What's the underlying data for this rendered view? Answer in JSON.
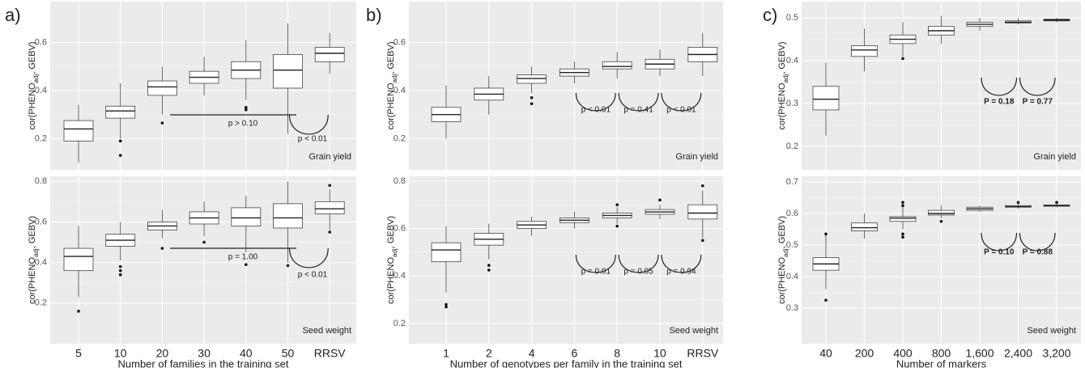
{
  "chart_data": [
    {
      "type": "box",
      "panel_label": "a)",
      "ylabel": [
        "cor(PHENO",
        "adj",
        ", GEBV)"
      ],
      "facet_label": "Grain yield",
      "grid": true,
      "ylim": [
        0.07,
        0.77
      ],
      "yticks": [
        0.2,
        0.4,
        0.6
      ],
      "boxes": [
        {
          "whislo": 0.1,
          "q1": 0.19,
          "med": 0.24,
          "q3": 0.275,
          "whishi": 0.34,
          "fliers": []
        },
        {
          "whislo": 0.2,
          "q1": 0.285,
          "med": 0.315,
          "q3": 0.335,
          "whishi": 0.43,
          "fliers": [
            0.19,
            0.13
          ]
        },
        {
          "whislo": 0.3,
          "q1": 0.38,
          "med": 0.415,
          "q3": 0.44,
          "whishi": 0.5,
          "fliers": [
            0.265
          ]
        },
        {
          "whislo": 0.38,
          "q1": 0.43,
          "med": 0.455,
          "q3": 0.48,
          "whishi": 0.54,
          "fliers": []
        },
        {
          "whislo": 0.36,
          "q1": 0.45,
          "med": 0.485,
          "q3": 0.52,
          "whishi": 0.61,
          "fliers": [
            0.33,
            0.32
          ]
        },
        {
          "whislo": 0.22,
          "q1": 0.41,
          "med": 0.485,
          "q3": 0.55,
          "whishi": 0.68,
          "fliers": []
        },
        {
          "whislo": 0.47,
          "q1": 0.52,
          "med": 0.555,
          "q3": 0.58,
          "whishi": 0.64,
          "fliers": []
        }
      ],
      "annotations": [
        "p > 0.10",
        "p < 0.01"
      ]
    },
    {
      "type": "box",
      "ylabel": [
        "cor(PHENO",
        "adj",
        ", GEBV)"
      ],
      "facet_label": "Seed weight",
      "grid": true,
      "xlabel": "Number of families in the training set",
      "categories": [
        "5",
        "10",
        "20",
        "30",
        "40",
        "50",
        "RRSV"
      ],
      "ylim": [
        0.0,
        0.825
      ],
      "yticks": [
        0.2,
        0.4,
        0.6,
        0.8
      ],
      "boxes": [
        {
          "whislo": 0.23,
          "q1": 0.36,
          "med": 0.43,
          "q3": 0.47,
          "whishi": 0.58,
          "fliers": [
            0.16
          ]
        },
        {
          "whislo": 0.41,
          "q1": 0.48,
          "med": 0.51,
          "q3": 0.54,
          "whishi": 0.6,
          "fliers": [
            0.38,
            0.36,
            0.34
          ]
        },
        {
          "whislo": 0.52,
          "q1": 0.56,
          "med": 0.58,
          "q3": 0.6,
          "whishi": 0.66,
          "fliers": [
            0.47
          ]
        },
        {
          "whislo": 0.53,
          "q1": 0.59,
          "med": 0.62,
          "q3": 0.65,
          "whishi": 0.7,
          "fliers": [
            0.5
          ]
        },
        {
          "whislo": 0.45,
          "q1": 0.58,
          "med": 0.62,
          "q3": 0.67,
          "whishi": 0.73,
          "fliers": [
            0.39
          ]
        },
        {
          "whislo": 0.4,
          "q1": 0.57,
          "med": 0.62,
          "q3": 0.69,
          "whishi": 0.8,
          "fliers": [
            0.385
          ]
        },
        {
          "whislo": 0.56,
          "q1": 0.64,
          "med": 0.665,
          "q3": 0.7,
          "whishi": 0.76,
          "fliers": [
            0.78,
            0.55
          ]
        }
      ],
      "annotations": [
        "p = 1.00",
        "p < 0.01"
      ]
    },
    {
      "type": "box",
      "panel_label": "b)",
      "ylabel": [
        "cor(PHENO",
        "adj",
        ", GEBV)"
      ],
      "facet_label": "Grain yield",
      "grid": true,
      "ylim": [
        0.07,
        0.77
      ],
      "yticks": [
        0.2,
        0.4,
        0.6
      ],
      "boxes": [
        {
          "whislo": 0.2,
          "q1": 0.27,
          "med": 0.3,
          "q3": 0.33,
          "whishi": 0.42,
          "fliers": []
        },
        {
          "whislo": 0.3,
          "q1": 0.36,
          "med": 0.385,
          "q3": 0.41,
          "whishi": 0.46,
          "fliers": []
        },
        {
          "whislo": 0.39,
          "q1": 0.43,
          "med": 0.45,
          "q3": 0.465,
          "whishi": 0.5,
          "fliers": [
            0.37,
            0.345
          ]
        },
        {
          "whislo": 0.43,
          "q1": 0.46,
          "med": 0.475,
          "q3": 0.49,
          "whishi": 0.52,
          "fliers": []
        },
        {
          "whislo": 0.45,
          "q1": 0.49,
          "med": 0.5,
          "q3": 0.52,
          "whishi": 0.56,
          "fliers": []
        },
        {
          "whislo": 0.46,
          "q1": 0.49,
          "med": 0.51,
          "q3": 0.53,
          "whishi": 0.57,
          "fliers": []
        },
        {
          "whislo": 0.46,
          "q1": 0.52,
          "med": 0.55,
          "q3": 0.58,
          "whishi": 0.64,
          "fliers": []
        }
      ],
      "annotations": [
        "p < 0.01",
        "p = 0.41",
        "p < 0.01"
      ]
    },
    {
      "type": "box",
      "ylabel": [
        "cor(PHENO",
        "adj",
        ", GEBV)"
      ],
      "facet_label": "Seed weight",
      "grid": true,
      "xlabel": "Number of genotypes per family in the training set",
      "categories": [
        "1",
        "2",
        "4",
        "6",
        "8",
        "10",
        "RRSV"
      ],
      "ylim": [
        0.115,
        0.82
      ],
      "yticks": [
        0.2,
        0.4,
        0.6,
        0.8
      ],
      "boxes": [
        {
          "whislo": 0.33,
          "q1": 0.46,
          "med": 0.51,
          "q3": 0.54,
          "whishi": 0.61,
          "fliers": [
            0.28,
            0.27
          ]
        },
        {
          "whislo": 0.47,
          "q1": 0.53,
          "med": 0.555,
          "q3": 0.58,
          "whishi": 0.62,
          "fliers": [
            0.445,
            0.425
          ]
        },
        {
          "whislo": 0.57,
          "q1": 0.6,
          "med": 0.615,
          "q3": 0.63,
          "whishi": 0.65,
          "fliers": []
        },
        {
          "whislo": 0.6,
          "q1": 0.625,
          "med": 0.635,
          "q3": 0.645,
          "whishi": 0.67,
          "fliers": []
        },
        {
          "whislo": 0.62,
          "q1": 0.645,
          "med": 0.655,
          "q3": 0.665,
          "whishi": 0.69,
          "fliers": [
            0.7,
            0.61
          ]
        },
        {
          "whislo": 0.64,
          "q1": 0.66,
          "med": 0.67,
          "q3": 0.68,
          "whishi": 0.7,
          "fliers": [
            0.72
          ]
        },
        {
          "whislo": 0.56,
          "q1": 0.64,
          "med": 0.665,
          "q3": 0.7,
          "whishi": 0.76,
          "fliers": [
            0.78,
            0.55
          ]
        }
      ],
      "annotations": [
        "p = 0.01",
        "p = 0.05",
        "p = 0.94"
      ]
    },
    {
      "type": "box",
      "panel_label": "c)",
      "ylabel": [
        "cor(PHENO",
        "adj",
        ", GEBV)"
      ],
      "facet_label": "Grain yield",
      "grid": true,
      "ylim": [
        0.145,
        0.538
      ],
      "yticks": [
        0.2,
        0.3,
        0.4,
        0.5
      ],
      "boxes": [
        {
          "whislo": 0.225,
          "q1": 0.285,
          "med": 0.31,
          "q3": 0.34,
          "whishi": 0.395,
          "fliers": []
        },
        {
          "whislo": 0.375,
          "q1": 0.41,
          "med": 0.425,
          "q3": 0.435,
          "whishi": 0.475,
          "fliers": []
        },
        {
          "whislo": 0.41,
          "q1": 0.44,
          "med": 0.45,
          "q3": 0.46,
          "whishi": 0.49,
          "fliers": [
            0.405
          ]
        },
        {
          "whislo": 0.44,
          "q1": 0.46,
          "med": 0.47,
          "q3": 0.48,
          "whishi": 0.505,
          "fliers": []
        },
        {
          "whislo": 0.47,
          "q1": 0.48,
          "med": 0.485,
          "q3": 0.49,
          "whishi": 0.5,
          "fliers": []
        },
        {
          "whislo": 0.485,
          "q1": 0.488,
          "med": 0.49,
          "q3": 0.493,
          "whishi": 0.5,
          "fliers": []
        },
        {
          "whislo": 0.49,
          "q1": 0.493,
          "med": 0.495,
          "q3": 0.497,
          "whishi": 0.5,
          "fliers": []
        }
      ],
      "annotations": [
        "P = 0.18",
        "P = 0.77"
      ]
    },
    {
      "type": "box",
      "ylabel": [
        "cor(PHENO",
        "adj",
        ", GEBV)"
      ],
      "facet_label": "Seed weight",
      "grid": true,
      "xlabel": "Number of markers",
      "categories": [
        "40",
        "200",
        "400",
        "800",
        "1,600",
        "2,400",
        "3,200"
      ],
      "ylim": [
        0.187,
        0.718
      ],
      "yticks": [
        0.3,
        0.4,
        0.5,
        0.6,
        0.7
      ],
      "boxes": [
        {
          "whislo": 0.36,
          "q1": 0.42,
          "med": 0.44,
          "q3": 0.46,
          "whishi": 0.53,
          "fliers": [
            0.535,
            0.325
          ]
        },
        {
          "whislo": 0.52,
          "q1": 0.545,
          "med": 0.555,
          "q3": 0.57,
          "whishi": 0.6,
          "fliers": []
        },
        {
          "whislo": 0.55,
          "q1": 0.575,
          "med": 0.585,
          "q3": 0.59,
          "whishi": 0.63,
          "fliers": [
            0.635,
            0.625,
            0.535,
            0.525
          ]
        },
        {
          "whislo": 0.585,
          "q1": 0.595,
          "med": 0.6,
          "q3": 0.61,
          "whishi": 0.625,
          "fliers": [
            0.575
          ]
        },
        {
          "whislo": 0.605,
          "q1": 0.61,
          "med": 0.615,
          "q3": 0.62,
          "whishi": 0.625,
          "fliers": []
        },
        {
          "whislo": 0.615,
          "q1": 0.62,
          "med": 0.622,
          "q3": 0.625,
          "whishi": 0.63,
          "fliers": [
            0.635
          ]
        },
        {
          "whislo": 0.62,
          "q1": 0.623,
          "med": 0.625,
          "q3": 0.627,
          "whishi": 0.63,
          "fliers": [
            0.635
          ]
        }
      ],
      "annotations": [
        "P = 0.10",
        "P = 0.88"
      ]
    }
  ]
}
